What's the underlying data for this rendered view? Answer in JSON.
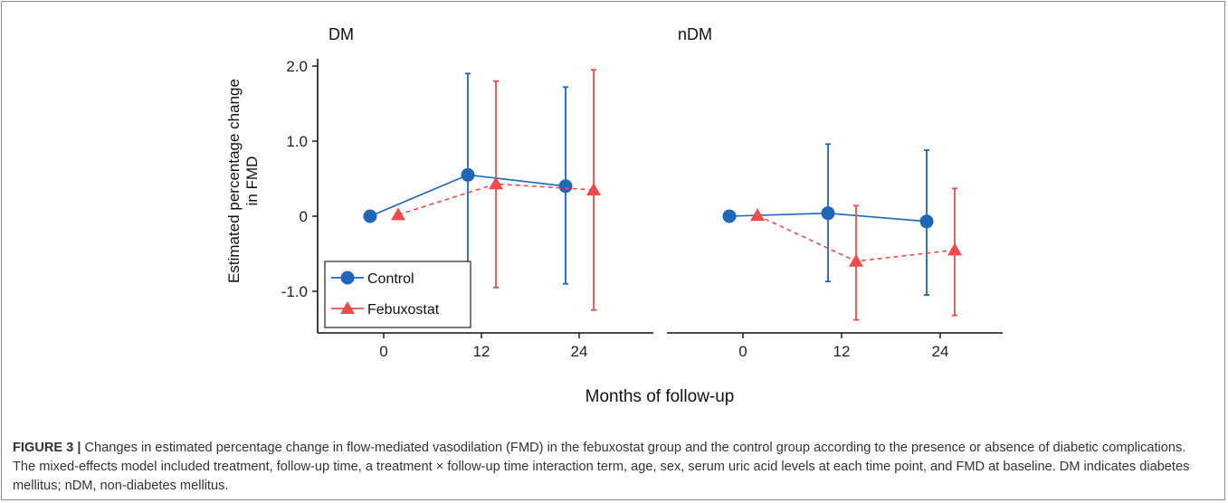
{
  "chart_data": {
    "type": "line",
    "xlabel": "Months of follow-up",
    "ylabel_line1": "Estimated percentage change",
    "ylabel_line2": "in FMD",
    "y_ticks": [
      2.0,
      1.0,
      0,
      -1.0
    ],
    "y_tick_labels": [
      "2.0",
      "1.0",
      "0",
      "-1.0"
    ],
    "ylim": [
      -1.55,
      2.1
    ],
    "x_ticks": [
      0,
      12,
      24
    ],
    "x_tick_labels": [
      "0",
      "12",
      "24"
    ],
    "legend": {
      "placement": "bottom-left",
      "entries": [
        "Control",
        "Febuxostat"
      ]
    },
    "colors": {
      "Control": "#1f65b8",
      "Febuxostat": "#f04b4b"
    },
    "panels": [
      {
        "title": "DM",
        "series": [
          {
            "name": "Control",
            "marker": "circle",
            "linestyle": "solid",
            "x": [
              0,
              12,
              24
            ],
            "y": [
              0.0,
              0.55,
              0.4
            ],
            "lower": [
              null,
              -0.78,
              -0.9
            ],
            "upper": [
              null,
              1.9,
              1.72
            ]
          },
          {
            "name": "Febuxostat",
            "marker": "triangle",
            "linestyle": "dashed",
            "x": [
              0,
              12,
              24
            ],
            "y": [
              0.02,
              0.43,
              0.35
            ],
            "lower": [
              null,
              -0.95,
              -1.25
            ],
            "upper": [
              null,
              1.8,
              1.95
            ]
          }
        ]
      },
      {
        "title": "nDM",
        "series": [
          {
            "name": "Control",
            "marker": "circle",
            "linestyle": "solid",
            "x": [
              0,
              12,
              24
            ],
            "y": [
              0.0,
              0.04,
              -0.07
            ],
            "lower": [
              null,
              -0.87,
              -1.05
            ],
            "upper": [
              null,
              0.96,
              0.88
            ]
          },
          {
            "name": "Febuxostat",
            "marker": "triangle",
            "linestyle": "dashed",
            "x": [
              0,
              12,
              24
            ],
            "y": [
              0.01,
              -0.6,
              -0.45
            ],
            "lower": [
              null,
              -1.38,
              -1.32
            ],
            "upper": [
              null,
              0.14,
              0.37
            ]
          }
        ]
      }
    ]
  },
  "caption": {
    "label": "FIGURE 3 |",
    "text": "Changes in estimated percentage change in flow-mediated vasodilation (FMD) in the febuxostat group and the control group according to the presence or absence of diabetic complications. The mixed-effects model included treatment, follow-up time, a treatment × follow-up time interaction term, age, sex, serum uric acid levels at each time point, and FMD at baseline. DM indicates diabetes mellitus; nDM, non-diabetes mellitus."
  }
}
